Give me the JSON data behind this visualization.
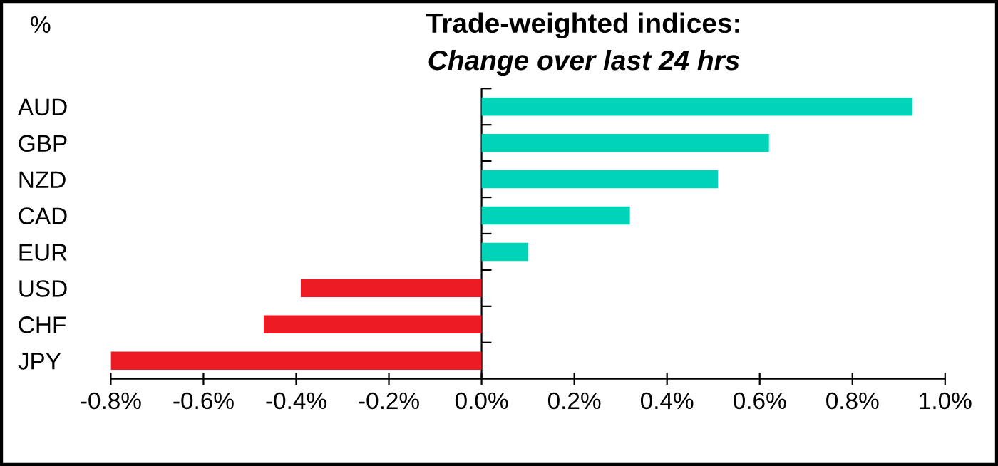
{
  "chart_data": {
    "type": "bar",
    "orientation": "horizontal",
    "title": "Trade-weighted indices:",
    "subtitle": "Change over last 24 hrs",
    "ylabel": "%",
    "categories": [
      "AUD",
      "GBP",
      "NZD",
      "CAD",
      "EUR",
      "USD",
      "CHF",
      "JPY"
    ],
    "values": [
      0.93,
      0.62,
      0.51,
      0.32,
      0.1,
      -0.39,
      -0.47,
      -0.8
    ],
    "colors": [
      "#00d4b8",
      "#00d4b8",
      "#00d4b8",
      "#00d4b8",
      "#00d4b8",
      "#ed1c24",
      "#ed1c24",
      "#ed1c24"
    ],
    "xlim": [
      -0.8,
      1.0
    ],
    "xticks": [
      {
        "value": -0.8,
        "label": "-0.8%"
      },
      {
        "value": -0.6,
        "label": "-0.6%"
      },
      {
        "value": -0.4,
        "label": "-0.4%"
      },
      {
        "value": -0.2,
        "label": "-0.2%"
      },
      {
        "value": 0.0,
        "label": "0.0%"
      },
      {
        "value": 0.2,
        "label": "0.2%"
      },
      {
        "value": 0.4,
        "label": "0.4%"
      },
      {
        "value": 0.6,
        "label": "0.6%"
      },
      {
        "value": 0.8,
        "label": "0.8%"
      },
      {
        "value": 1.0,
        "label": "1.0%"
      }
    ],
    "legend": false
  }
}
